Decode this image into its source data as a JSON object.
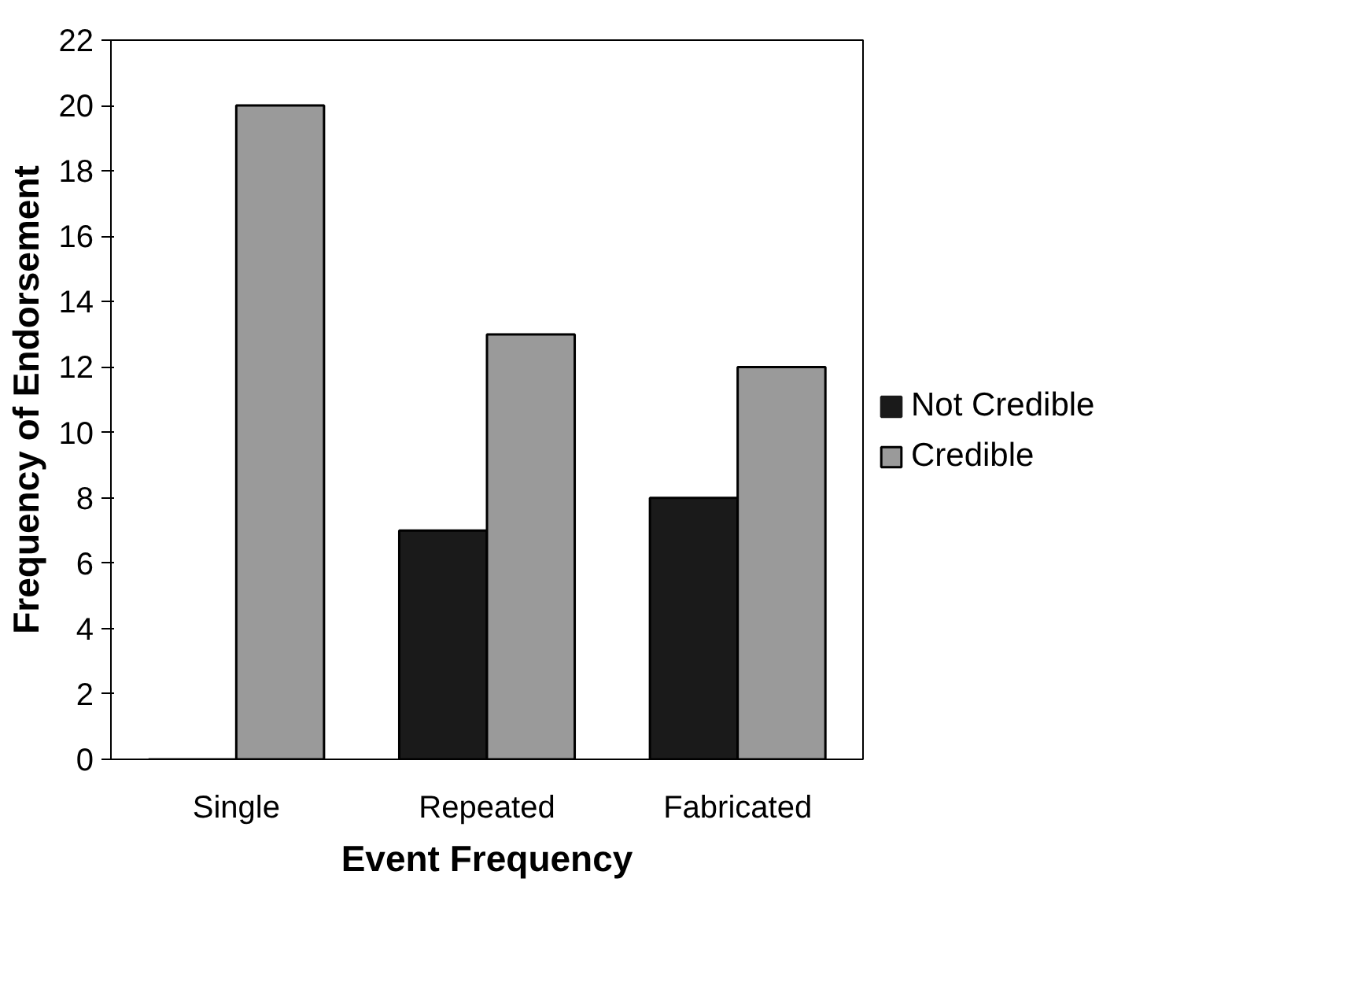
{
  "chart_data": {
    "type": "bar",
    "xlabel": "Event Frequency",
    "ylabel": "Frequency of Endorsement",
    "categories": [
      "Single",
      "Repeated",
      "Fabricated"
    ],
    "series": [
      {
        "name": "Not Credible",
        "color": "#1a1a1a",
        "values": [
          0,
          7,
          8
        ]
      },
      {
        "name": "Credible",
        "color": "#9a9a9a",
        "values": [
          20,
          13,
          12
        ]
      }
    ],
    "ylim": [
      0,
      22
    ],
    "yticks": [
      0,
      2,
      4,
      6,
      8,
      10,
      12,
      14,
      16,
      18,
      20,
      22
    ],
    "grid": false,
    "legend": "right"
  }
}
